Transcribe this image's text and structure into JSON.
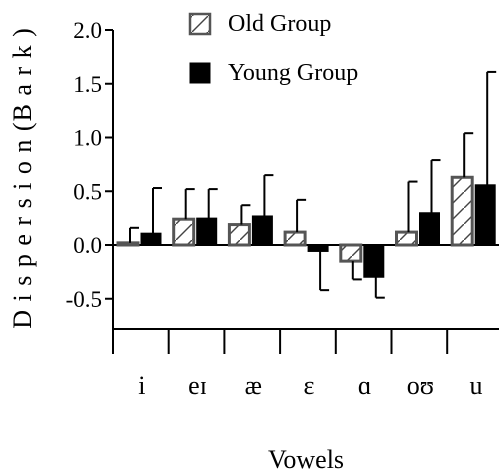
{
  "chart_data": {
    "type": "bar",
    "categories": [
      "i",
      "eɪ",
      "æ",
      "ɛ",
      "ɑ",
      "oʊ",
      "u"
    ],
    "series": [
      {
        "name": "Old Group",
        "values": [
          0.02,
          0.24,
          0.19,
          0.12,
          -0.15,
          0.12,
          0.63
        ],
        "errors": [
          0.14,
          0.28,
          0.18,
          0.3,
          0.17,
          0.47,
          0.41
        ],
        "fill": "hatched"
      },
      {
        "name": "Young Group",
        "values": [
          0.11,
          0.25,
          0.27,
          -0.06,
          -0.3,
          0.3,
          0.56
        ],
        "errors": [
          0.42,
          0.27,
          0.38,
          0.36,
          0.19,
          0.49,
          1.05
        ],
        "fill": "solid"
      }
    ],
    "ylabel": "D i s p e r s i o n  (B a r k )",
    "xlabel": "Vowels",
    "yticks": [
      "2.0",
      "1.5",
      "1.0",
      "0.5",
      "0.0",
      "-0.5"
    ],
    "ytick_values": [
      2.0,
      1.5,
      1.0,
      0.5,
      0.0,
      -0.5
    ],
    "ylim": [
      -0.8,
      2.0
    ],
    "legend_position": "top",
    "colors": {
      "bar_edge": "#000000",
      "solid": "#000000",
      "hatched_edge": "#555555",
      "background": "#ffffff"
    }
  }
}
